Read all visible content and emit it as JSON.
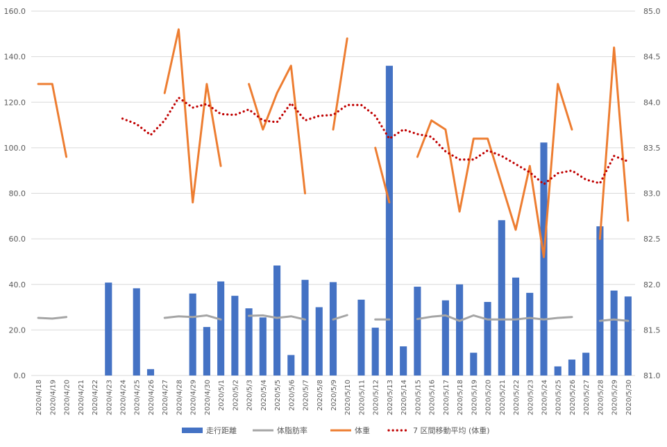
{
  "chart_data": {
    "type": "bar",
    "categories": [
      "2020/4/18",
      "2020/4/19",
      "2020/4/20",
      "2020/4/21",
      "2020/4/22",
      "2020/4/23",
      "2020/4/24",
      "2020/4/25",
      "2020/4/26",
      "2020/4/27",
      "2020/4/28",
      "2020/4/29",
      "2020/4/30",
      "2020/5/1",
      "2020/5/2",
      "2020/5/3",
      "2020/5/4",
      "2020/5/5",
      "2020/5/6",
      "2020/5/7",
      "2020/5/8",
      "2020/5/9",
      "2020/5/10",
      "2020/5/11",
      "2020/5/12",
      "2020/5/13",
      "2020/5/14",
      "2020/5/15",
      "2020/5/16",
      "2020/5/17",
      "2020/5/18",
      "2020/5/19",
      "2020/5/20",
      "2020/5/21",
      "2020/5/22",
      "2020/5/23",
      "2020/5/24",
      "2020/5/25",
      "2020/5/26",
      "2020/5/27",
      "2020/5/28",
      "2020/5/29",
      "2020/5/30"
    ],
    "y_left": {
      "ylim": [
        0,
        160
      ],
      "ticks": [
        "0.0",
        "20.0",
        "40.0",
        "60.0",
        "80.0",
        "100.0",
        "120.0",
        "140.0",
        "160.0"
      ]
    },
    "y_right": {
      "ylim": [
        81,
        85
      ],
      "ticks": [
        "81.0",
        "81.5",
        "82.0",
        "82.5",
        "83.0",
        "83.5",
        "84.0",
        "84.5",
        "85.0"
      ]
    },
    "grid": true,
    "legend_position": "bottom",
    "series": [
      {
        "name": "走行距離",
        "kind": "bar",
        "axis": "left",
        "color": "#4472C4",
        "values": [
          null,
          null,
          null,
          null,
          null,
          40.8,
          null,
          38.3,
          2.8,
          null,
          null,
          36,
          21.3,
          41.3,
          35,
          29.5,
          25.5,
          48.3,
          9,
          42,
          30,
          41,
          null,
          33.3,
          21,
          136,
          12.8,
          39,
          null,
          33,
          40,
          10,
          32.3,
          68.2,
          43,
          36.3,
          102.3,
          4,
          7,
          10,
          65.5,
          37.3,
          34.7
        ]
      },
      {
        "name": "体脂肪率",
        "kind": "line",
        "axis": "left",
        "color": "#A5A5A5",
        "values": [
          25.3,
          25,
          25.7,
          null,
          null,
          null,
          null,
          null,
          null,
          25.3,
          26,
          25.7,
          26.4,
          24.6,
          null,
          26.2,
          26.4,
          25.3,
          26,
          24.6,
          null,
          24.6,
          26.5,
          null,
          24.6,
          24.6,
          null,
          24.8,
          25.8,
          26.4,
          24,
          26.4,
          24.6,
          24.6,
          24.6,
          25.3,
          24.6,
          25.3,
          25.7,
          null,
          24,
          24.6,
          24
        ]
      },
      {
        "name": "体重",
        "kind": "line",
        "axis": "right",
        "color": "#ED7D31",
        "values": [
          84.2,
          84.2,
          83.4,
          null,
          null,
          null,
          null,
          null,
          null,
          84.1,
          84.8,
          82.9,
          84.2,
          83.3,
          null,
          84.2,
          83.7,
          84.1,
          84.4,
          83,
          null,
          83.7,
          84.7,
          null,
          83.5,
          82.9,
          null,
          83.4,
          83.8,
          83.7,
          82.8,
          83.6,
          83.6,
          83.1,
          82.6,
          83.3,
          82.3,
          84.2,
          83.7,
          null,
          82.5,
          84.6,
          82.7
        ]
      },
      {
        "name": "7 区間移動平均 (体重)",
        "kind": "trendline",
        "axis": "right",
        "color": "#C00000",
        "values": [
          null,
          null,
          null,
          null,
          null,
          null,
          83.82,
          83.76,
          83.64,
          83.8,
          84.05,
          83.94,
          83.98,
          83.87,
          83.86,
          83.92,
          83.8,
          83.78,
          83.99,
          83.8,
          83.85,
          83.86,
          83.97,
          83.97,
          83.85,
          83.6,
          83.7,
          83.65,
          83.62,
          83.46,
          83.37,
          83.37,
          83.47,
          83.41,
          83.32,
          83.23,
          83.1,
          83.22,
          83.25,
          83.15,
          83.11,
          83.41,
          83.35
        ]
      }
    ]
  }
}
